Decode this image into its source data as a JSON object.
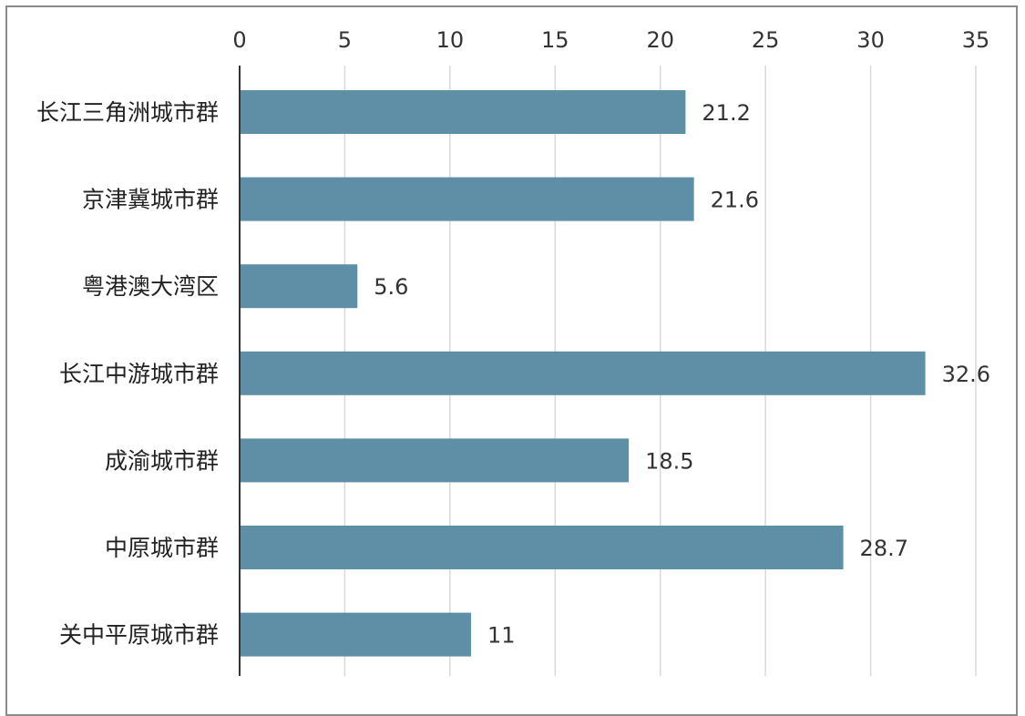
{
  "chart_data": {
    "type": "bar",
    "orientation": "horizontal",
    "categories": [
      "长江三角洲城市群",
      "京津冀城市群",
      "粤港澳大湾区",
      "长江中游城市群",
      "成渝城市群",
      "中原城市群",
      "关中平原城市群"
    ],
    "values": [
      21.2,
      21.6,
      5.6,
      32.6,
      18.5,
      28.7,
      11
    ],
    "value_labels": [
      "21.2",
      "21.6",
      "5.6",
      "32.6",
      "18.5",
      "28.7",
      "11"
    ],
    "xlim": [
      0,
      35
    ],
    "xticks": [
      "0",
      "5",
      "10",
      "15",
      "20",
      "25",
      "30",
      "35"
    ],
    "x_axis_position": "top",
    "grid": true,
    "bar_color": "#5e8fa6",
    "grid_color": "#d9d9d9"
  }
}
